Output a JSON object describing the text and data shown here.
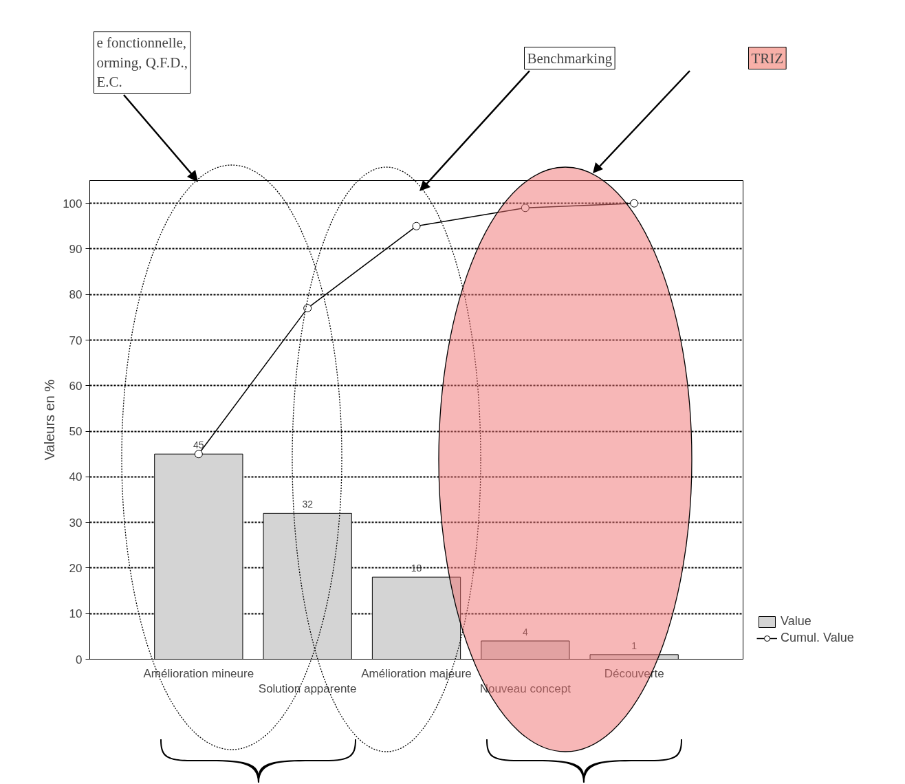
{
  "chart_data": {
    "type": "bar",
    "ylabel": "Valeurs en %",
    "categories": [
      "Amélioration mineure",
      "Solution apparente",
      "Amélioration majeure",
      "Nouveau concept",
      "Découverte"
    ],
    "series": [
      {
        "name": "Value",
        "color": "#d4d4d4",
        "values": [
          45,
          32,
          18,
          4,
          1
        ],
        "value_labels": [
          "45",
          "32",
          "18",
          "4",
          "1"
        ]
      },
      {
        "name": "Cumul. Value",
        "type": "line",
        "color": "#000000",
        "marker": "circle",
        "values": [
          45,
          77,
          95,
          99,
          100
        ]
      }
    ],
    "ylim": [
      0,
      105
    ],
    "yticks": [
      0,
      10,
      20,
      30,
      40,
      50,
      60,
      70,
      80,
      90,
      100
    ],
    "grid": "y",
    "legend": "bottom right",
    "annotations": [
      "e fonctionnelle,\norming, Q.F.D.,\nE.C.",
      "Benchmarking",
      "TRIZ"
    ]
  }
}
